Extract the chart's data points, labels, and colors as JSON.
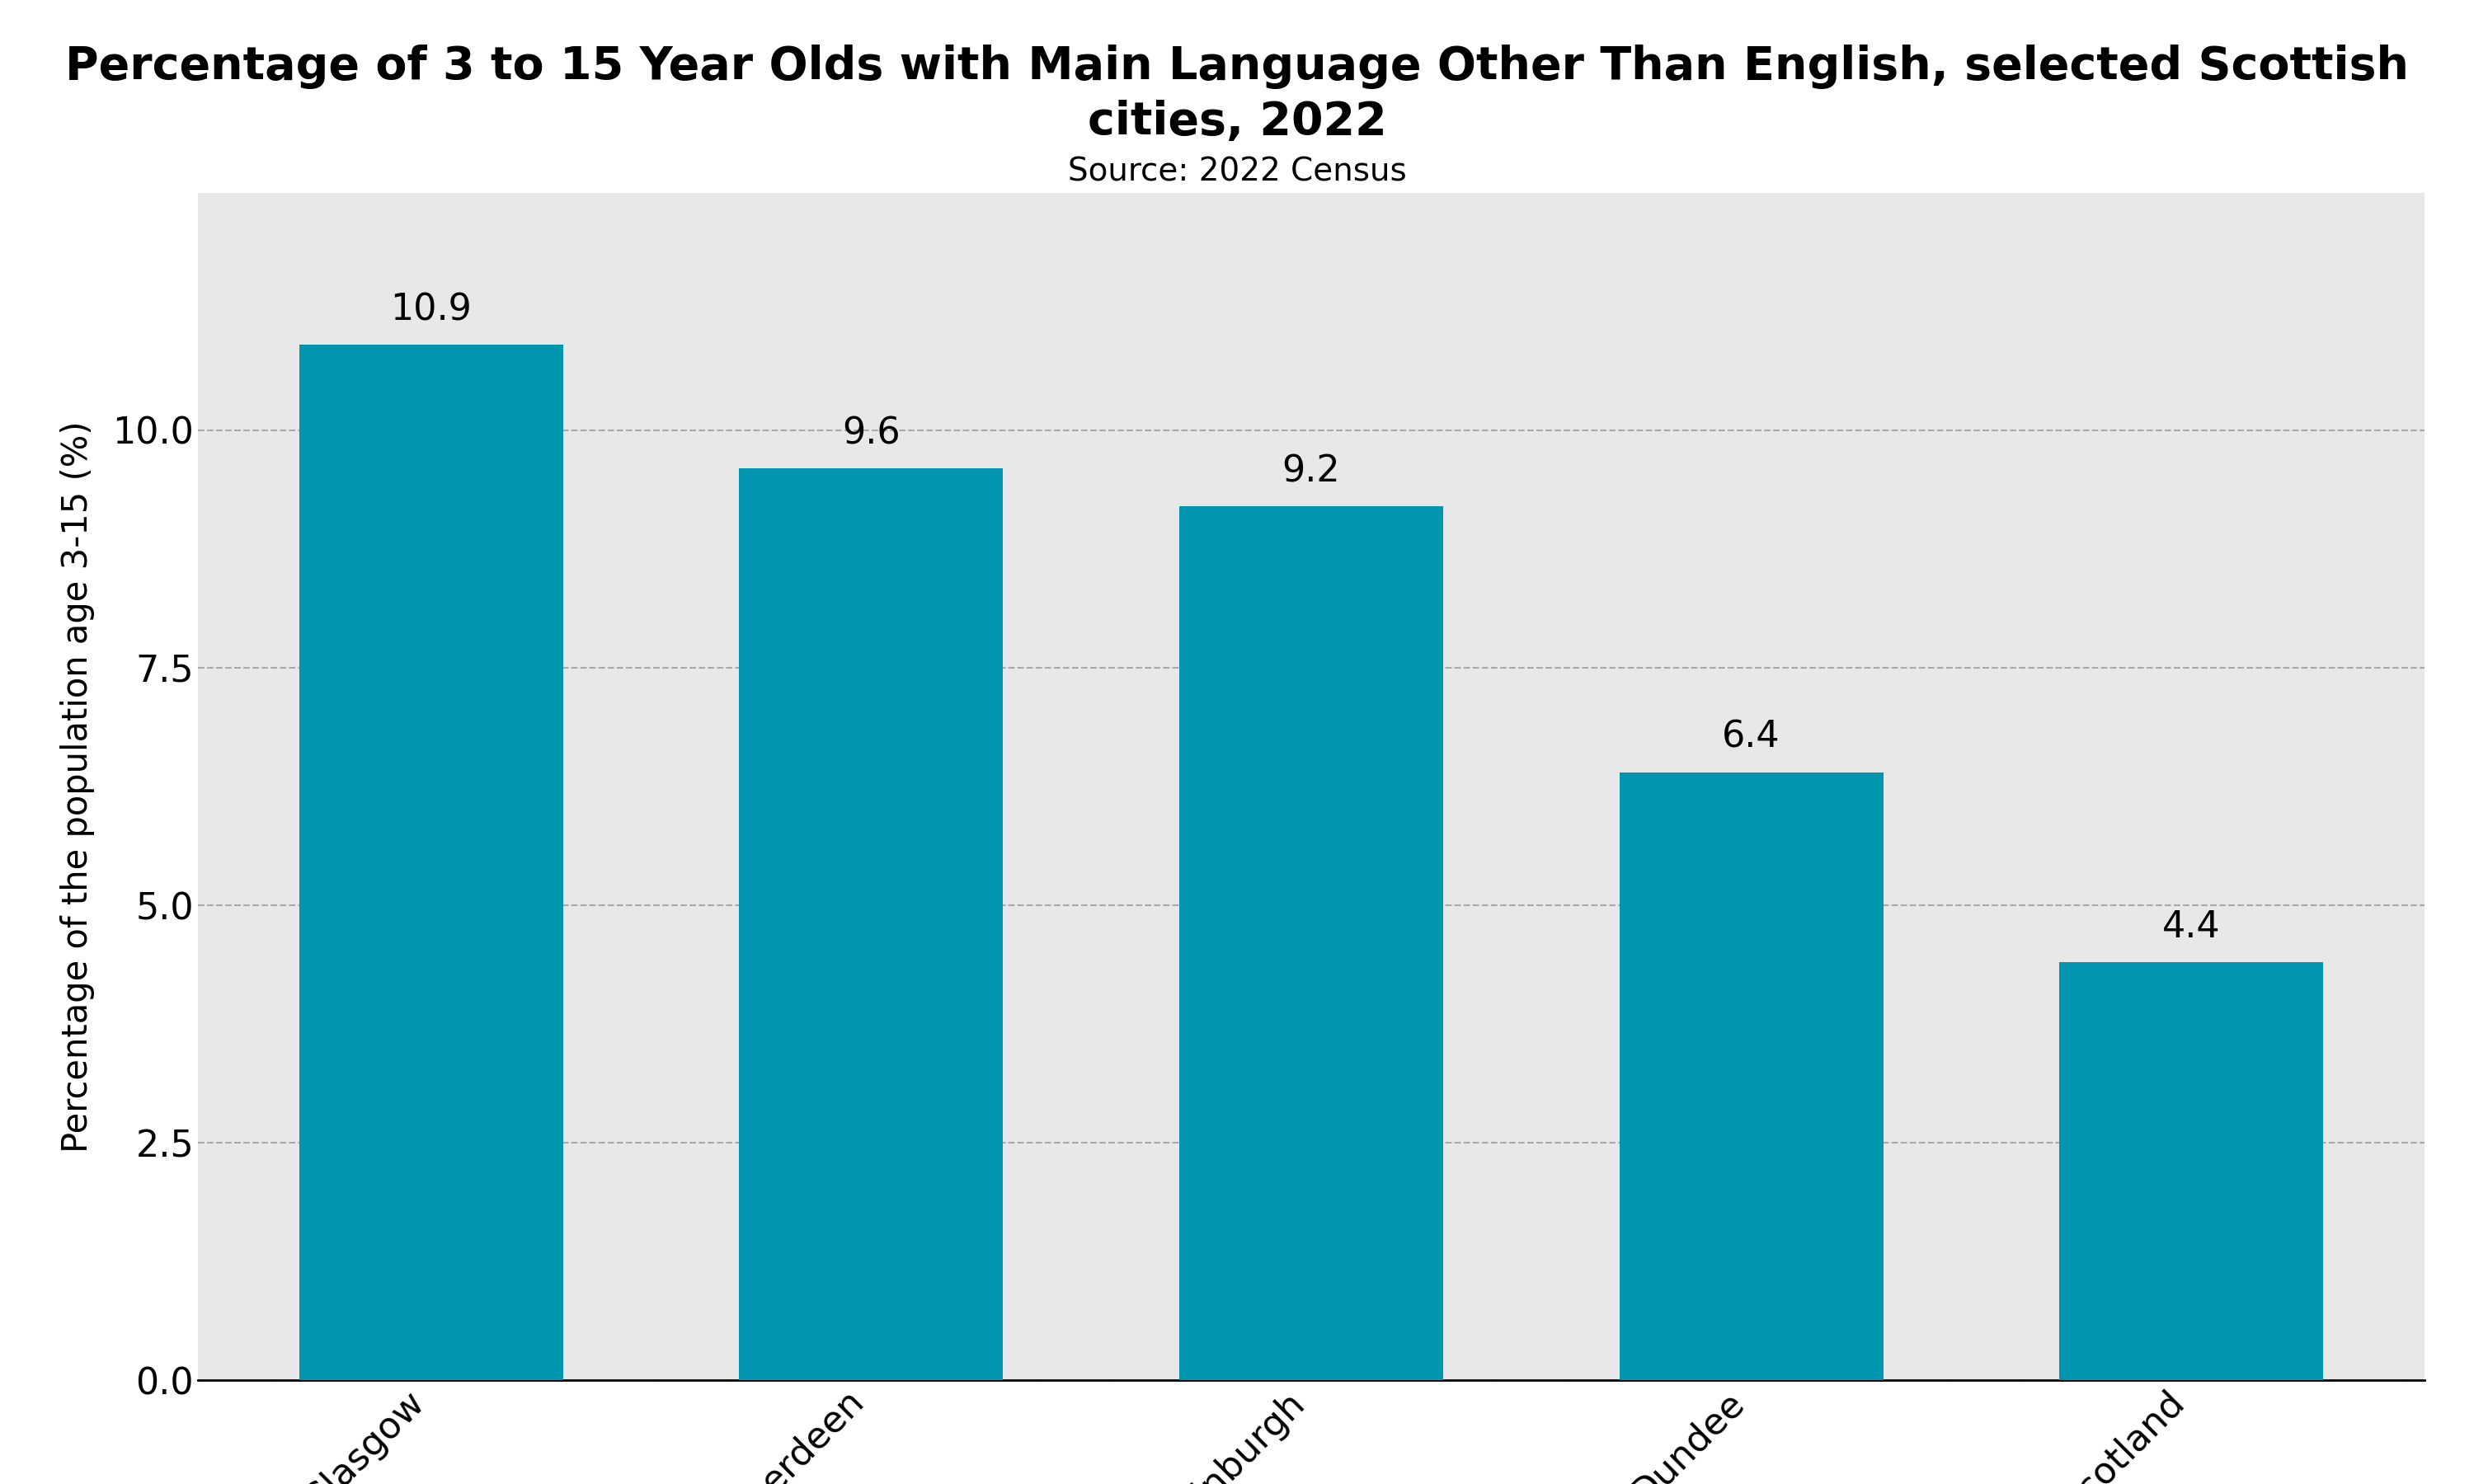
{
  "title_line1": "Percentage of 3 to 15 Year Olds with Main Language Other Than English, selected Scottish",
  "title_line2": "cities, 2022",
  "subtitle": "Source: 2022 Census",
  "categories": [
    "Glasgow",
    "Aberdeen",
    "Edinburgh",
    "Dundee",
    "Scotland"
  ],
  "values": [
    10.9,
    9.6,
    9.2,
    6.4,
    4.4
  ],
  "bar_color": "#0096B0",
  "ylabel": "Percentage of the population age 3-15 (%)",
  "ylim": [
    0,
    12.5
  ],
  "yticks": [
    0.0,
    2.5,
    5.0,
    7.5,
    10.0
  ],
  "background_color": "#e8e8e8",
  "outer_background": "#ffffff",
  "title_fontsize": 40,
  "subtitle_fontsize": 28,
  "ylabel_fontsize": 30,
  "tick_fontsize": 32,
  "bar_label_fontsize": 32,
  "xtick_fontsize": 32,
  "bar_width": 0.6
}
